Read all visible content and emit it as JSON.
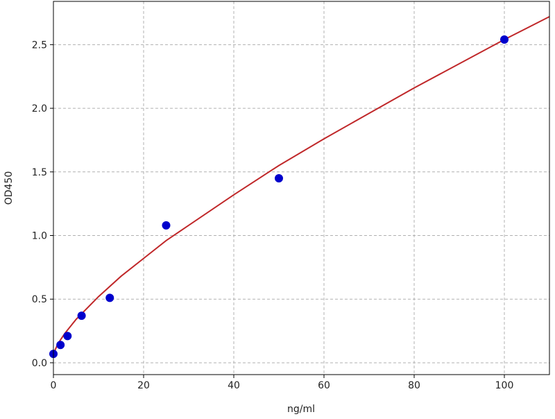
{
  "chart_data": {
    "type": "scatter",
    "title": "",
    "xlabel": "ng/ml",
    "ylabel": "OD450",
    "xlim": [
      0,
      110
    ],
    "ylim": [
      -0.093,
      2.84
    ],
    "grid": true,
    "xticks": [
      0,
      20,
      40,
      60,
      80,
      100
    ],
    "xtick_labels": [
      "0",
      "20",
      "40",
      "60",
      "80",
      "100"
    ],
    "yticks": [
      0.0,
      0.5,
      1.0,
      1.5,
      2.0,
      2.5
    ],
    "ytick_labels": [
      "0.0",
      "0.5",
      "1.0",
      "1.5",
      "2.0",
      "2.5"
    ],
    "points": {
      "color": "#0000cc",
      "x": [
        0,
        1.5625,
        3.125,
        6.25,
        12.5,
        25,
        50,
        100
      ],
      "y": [
        0.07,
        0.14,
        0.21,
        0.37,
        0.51,
        1.08,
        1.45,
        2.54
      ]
    },
    "fit_curve": {
      "color": "#c0282a",
      "x": [
        0,
        1,
        2.5,
        5,
        10,
        15,
        20,
        25,
        30,
        40,
        50,
        60,
        70,
        80,
        90,
        100,
        110
      ],
      "y": [
        0.07,
        0.15,
        0.23,
        0.34,
        0.52,
        0.68,
        0.82,
        0.96,
        1.08,
        1.32,
        1.55,
        1.76,
        1.96,
        2.16,
        2.35,
        2.54,
        2.72
      ]
    }
  }
}
